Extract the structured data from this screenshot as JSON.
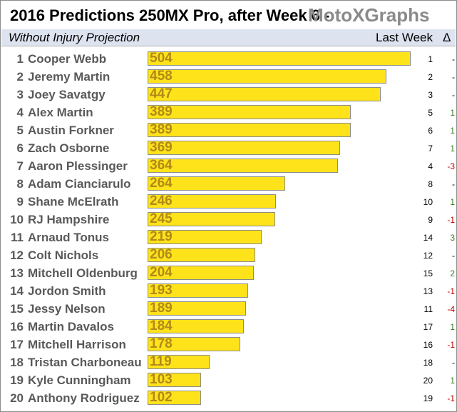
{
  "header": {
    "title": "2016 Predictions 250MX Pro, after Week 6  -",
    "brand": "MotoXGraphs",
    "subtitle": "Without Injury Projection",
    "last_week_label": "Last Week",
    "delta_label": "Δ"
  },
  "colors": {
    "bar": "#ffe31a",
    "bar_label": "#b08a18",
    "positive": "#3a7d22",
    "negative": "#c00000",
    "neutral": "#000000",
    "subtitle_band": "#dde3ef",
    "brand": "#8a8a8a"
  },
  "chart_data": {
    "type": "bar",
    "orientation": "horizontal",
    "title": "2016 Predictions 250MX Pro, after Week 6",
    "subtitle": "Without Injury Projection",
    "xlim": [
      0,
      530
    ],
    "rows": [
      {
        "rank": "1",
        "rider": "Cooper Webb",
        "value": 504,
        "label": "504",
        "last_week": "1",
        "delta": "-",
        "delta_sign": "neutral"
      },
      {
        "rank": "2",
        "rider": "Jeremy Martin",
        "value": 458,
        "label": "458",
        "last_week": "2",
        "delta": "-",
        "delta_sign": "neutral"
      },
      {
        "rank": "3",
        "rider": "Joey Savatgy",
        "value": 447,
        "label": "447",
        "last_week": "3",
        "delta": "-",
        "delta_sign": "neutral"
      },
      {
        "rank": "4",
        "rider": "Alex Martin",
        "value": 389,
        "label": "389",
        "last_week": "5",
        "delta": "1",
        "delta_sign": "positive"
      },
      {
        "rank": "5",
        "rider": "Austin Forkner",
        "value": 389,
        "label": "389",
        "last_week": "6",
        "delta": "1",
        "delta_sign": "positive"
      },
      {
        "rank": "6",
        "rider": "Zach Osborne",
        "value": 369,
        "label": "369",
        "last_week": "7",
        "delta": "1",
        "delta_sign": "positive"
      },
      {
        "rank": "7",
        "rider": "Aaron Plessinger",
        "value": 364,
        "label": "364",
        "last_week": "4",
        "delta": "-3",
        "delta_sign": "negative"
      },
      {
        "rank": "8",
        "rider": "Adam Cianciarulo",
        "value": 264,
        "label": "264",
        "last_week": "8",
        "delta": "-",
        "delta_sign": "neutral"
      },
      {
        "rank": "9",
        "rider": "Shane McElrath",
        "value": 246,
        "label": "246",
        "last_week": "10",
        "delta": "1",
        "delta_sign": "positive"
      },
      {
        "rank": "10",
        "rider": "RJ Hampshire",
        "value": 245,
        "label": "245",
        "last_week": "9",
        "delta": "-1",
        "delta_sign": "negative"
      },
      {
        "rank": "11",
        "rider": "Arnaud Tonus",
        "value": 219,
        "label": "219",
        "last_week": "14",
        "delta": "3",
        "delta_sign": "positive"
      },
      {
        "rank": "12",
        "rider": "Colt Nichols",
        "value": 206,
        "label": "206",
        "last_week": "12",
        "delta": "-",
        "delta_sign": "neutral"
      },
      {
        "rank": "13",
        "rider": "Mitchell Oldenburg",
        "value": 204,
        "label": "204",
        "last_week": "15",
        "delta": "2",
        "delta_sign": "positive"
      },
      {
        "rank": "14",
        "rider": "Jordon Smith",
        "value": 193,
        "label": "193",
        "last_week": "13",
        "delta": "-1",
        "delta_sign": "negative"
      },
      {
        "rank": "15",
        "rider": "Jessy Nelson",
        "value": 189,
        "label": "189",
        "last_week": "11",
        "delta": "-4",
        "delta_sign": "negative"
      },
      {
        "rank": "16",
        "rider": "Martin Davalos",
        "value": 184,
        "label": "184",
        "last_week": "17",
        "delta": "1",
        "delta_sign": "positive"
      },
      {
        "rank": "17",
        "rider": "Mitchell Harrison",
        "value": 178,
        "label": "178",
        "last_week": "16",
        "delta": "-1",
        "delta_sign": "negative"
      },
      {
        "rank": "18",
        "rider": "Tristan Charboneau",
        "value": 119,
        "label": "119",
        "last_week": "18",
        "delta": "-",
        "delta_sign": "neutral"
      },
      {
        "rank": "19",
        "rider": "Kyle Cunningham",
        "value": 103,
        "label": "103",
        "last_week": "20",
        "delta": "1",
        "delta_sign": "positive"
      },
      {
        "rank": "20",
        "rider": "Anthony Rodriguez",
        "value": 102,
        "label": "102",
        "last_week": "19",
        "delta": "-1",
        "delta_sign": "negative"
      }
    ]
  }
}
